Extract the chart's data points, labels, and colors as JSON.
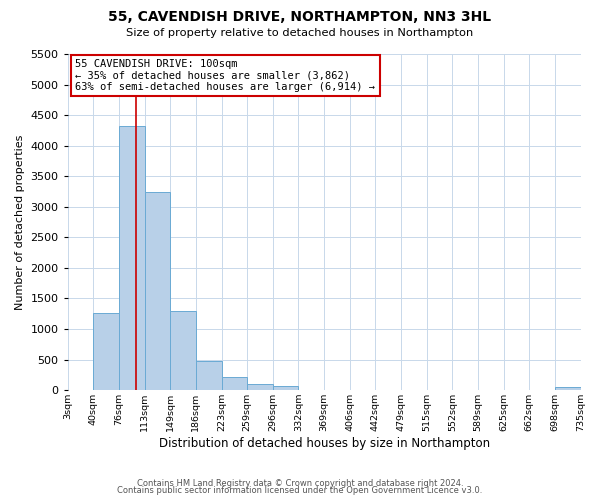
{
  "title": "55, CAVENDISH DRIVE, NORTHAMPTON, NN3 3HL",
  "subtitle": "Size of property relative to detached houses in Northampton",
  "xlabel": "Distribution of detached houses by size in Northampton",
  "ylabel": "Number of detached properties",
  "bar_color": "#b8d0e8",
  "bar_edge_color": "#6aaad4",
  "background_color": "#ffffff",
  "grid_color": "#c8d8ea",
  "annotation_box_edge": "#cc0000",
  "annotation_line_color": "#cc0000",
  "bin_labels": [
    "3sqm",
    "40sqm",
    "76sqm",
    "113sqm",
    "149sqm",
    "186sqm",
    "223sqm",
    "259sqm",
    "296sqm",
    "332sqm",
    "369sqm",
    "406sqm",
    "442sqm",
    "479sqm",
    "515sqm",
    "552sqm",
    "589sqm",
    "625sqm",
    "662sqm",
    "698sqm",
    "735sqm"
  ],
  "values": [
    0,
    1270,
    4330,
    3250,
    1290,
    480,
    220,
    100,
    60,
    0,
    0,
    0,
    0,
    0,
    0,
    0,
    0,
    0,
    0,
    50,
    0
  ],
  "ylim": [
    0,
    5500
  ],
  "yticks": [
    0,
    500,
    1000,
    1500,
    2000,
    2500,
    3000,
    3500,
    4000,
    4500,
    5000,
    5500
  ],
  "annotation_title": "55 CAVENDISH DRIVE: 100sqm",
  "annotation_line1": "← 35% of detached houses are smaller (3,862)",
  "annotation_line2": "63% of semi-detached houses are larger (6,914) →",
  "footer1": "Contains HM Land Registry data © Crown copyright and database right 2024.",
  "footer2": "Contains public sector information licensed under the Open Government Licence v3.0.",
  "red_line_bin": 1.73
}
